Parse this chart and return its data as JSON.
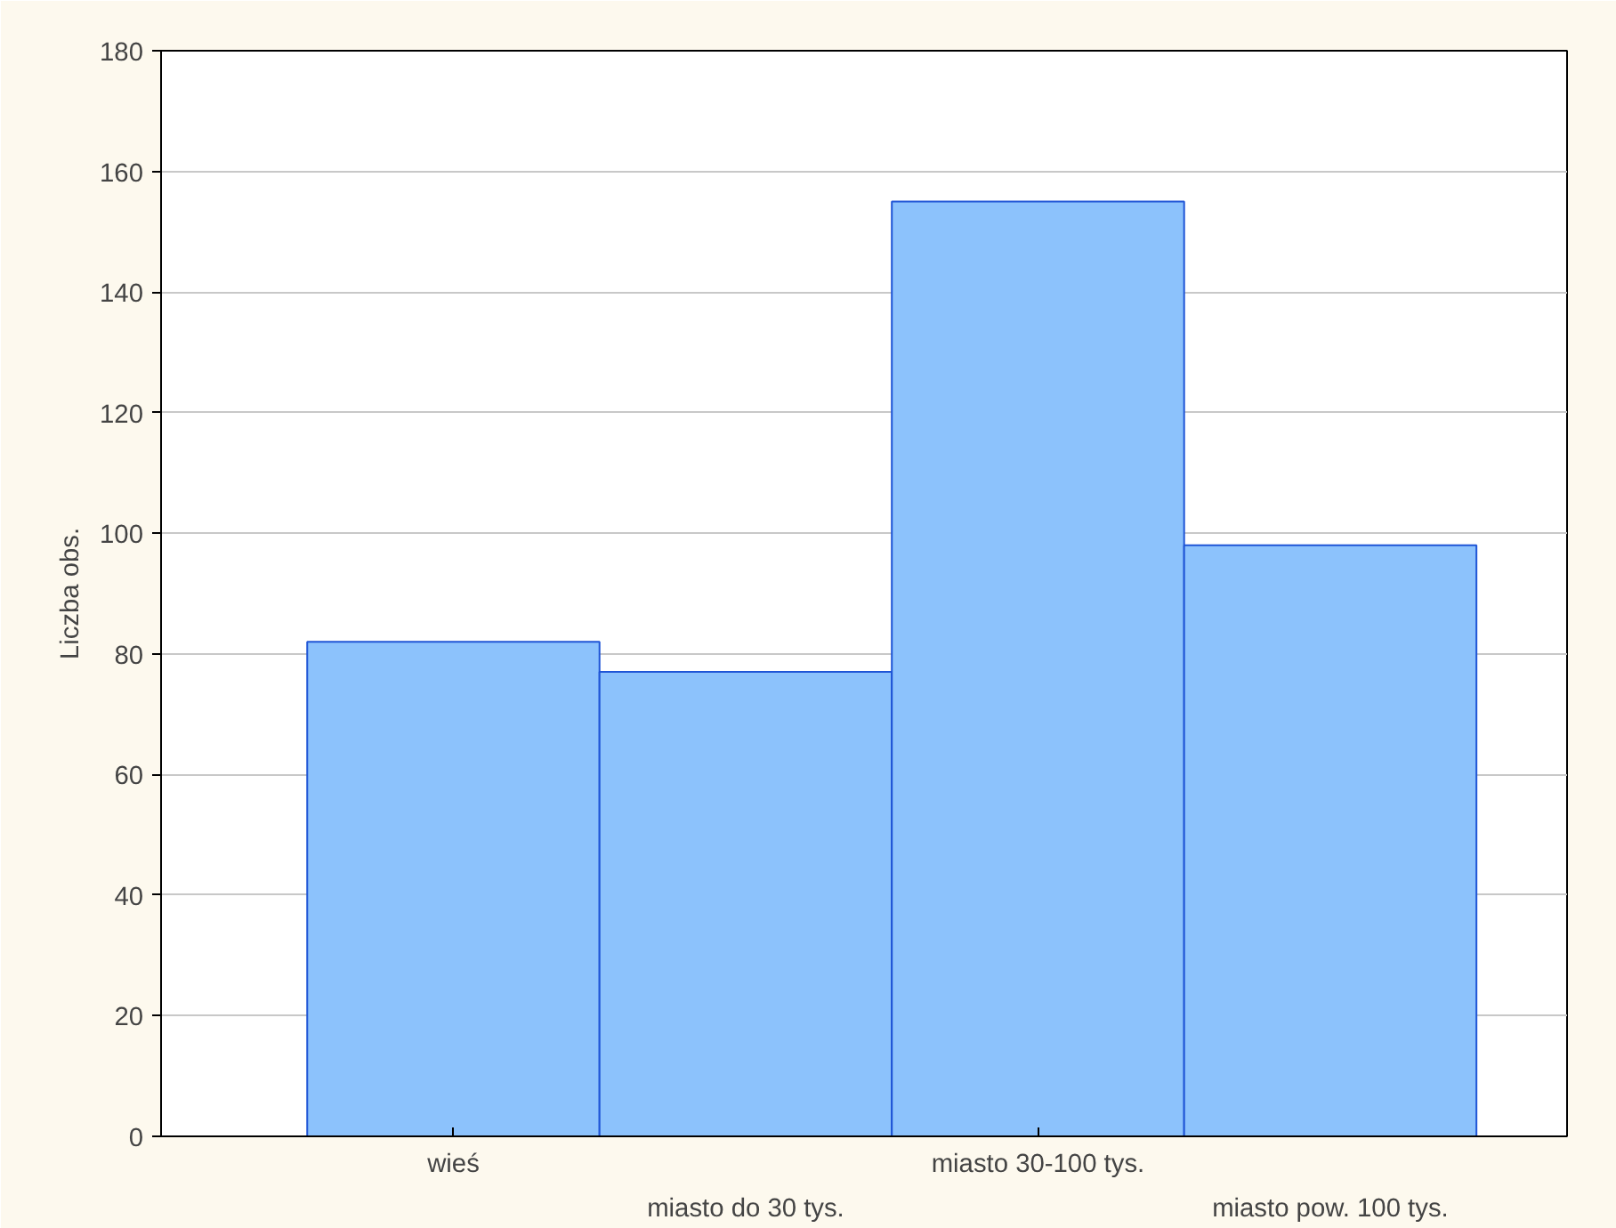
{
  "chart_data": {
    "type": "bar",
    "ylabel": "Liczba obs.",
    "categories": [
      "wieś",
      "miasto do 30 tys.",
      "miasto 30-100 tys.",
      "miasto pow. 100 tys."
    ],
    "values": [
      82,
      77,
      155,
      98
    ],
    "color": "#8cc2fc",
    "ylim": [
      0,
      180
    ],
    "yticks": [
      0,
      20,
      40,
      60,
      80,
      100,
      120,
      140,
      160,
      180
    ],
    "grid": "y"
  }
}
